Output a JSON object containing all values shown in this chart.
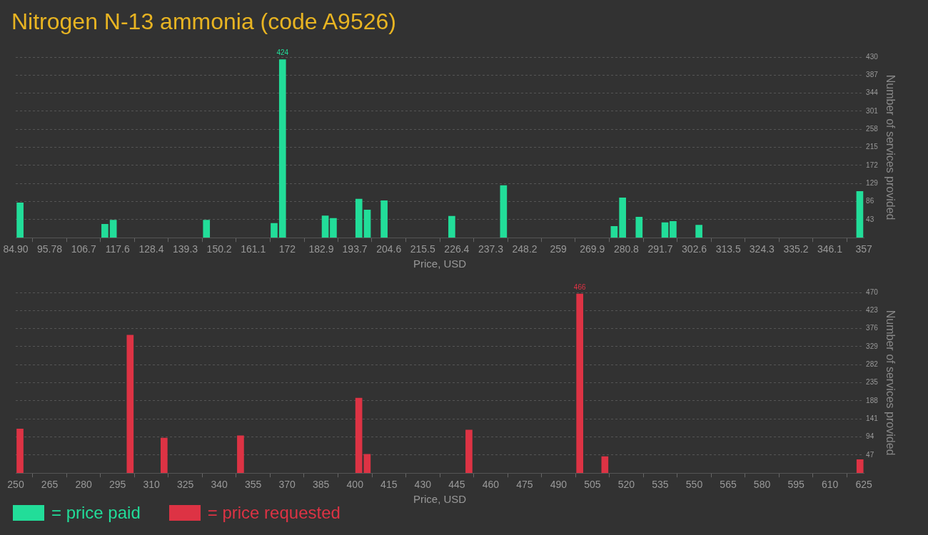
{
  "chart_data": [
    {
      "type": "bar",
      "title": "Nitrogen N-13 ammonia (code A9526)",
      "xlabel": "Price, USD",
      "ylabel": "Number of services provided",
      "x": [
        86.3,
        113.5,
        116.2,
        146.1,
        167.8,
        170.5,
        184.2,
        186.8,
        195.0,
        197.7,
        203.1,
        224.8,
        241.4,
        276.9,
        279.6,
        284.9,
        293.2,
        295.8,
        304.1,
        355.7
      ],
      "series": [
        {
          "name": "= price paid",
          "color": "#22dd99",
          "values": [
            83,
            32,
            42,
            42,
            34,
            424,
            52,
            46,
            92,
            66,
            88,
            51,
            124,
            27,
            95,
            49,
            36,
            39,
            30,
            110
          ],
          "value_labels": [
            null,
            null,
            null,
            null,
            null,
            "424",
            null,
            null,
            null,
            null,
            null,
            null,
            null,
            null,
            null,
            null,
            null,
            null,
            null,
            null
          ]
        }
      ],
      "xlim": [
        84.9,
        357
      ],
      "xticks": [
        {
          "value": 84.9,
          "label": "84.90"
        },
        95.78,
        106.7,
        117.6,
        128.4,
        139.3,
        150.2,
        161.1,
        172,
        182.9,
        193.7,
        204.6,
        215.5,
        226.4,
        237.3,
        248.2,
        259,
        269.9,
        280.8,
        291.7,
        302.6,
        313.5,
        324.3,
        335.2,
        346.1,
        357
      ],
      "ylim": [
        0,
        430
      ],
      "yticks": [
        {
          "value": 0,
          "label": null
        },
        43,
        86,
        129,
        172,
        215,
        258,
        301,
        344,
        387,
        430
      ],
      "grid": "y",
      "legend": "bottom left"
    },
    {
      "type": "bar",
      "xlabel": "Price, USD",
      "ylabel": "Number of services provided",
      "x": [
        251.9,
        300.6,
        315.6,
        349.4,
        401.7,
        405.4,
        450.4,
        499.4,
        510.5,
        623.3
      ],
      "series": [
        {
          "name": "= price requested",
          "color": "#dd3344",
          "values": [
            115,
            359,
            91,
            97,
            195,
            49,
            112,
            466,
            43,
            35
          ],
          "value_labels": [
            null,
            null,
            null,
            null,
            null,
            null,
            null,
            "466",
            null,
            null
          ]
        }
      ],
      "xlim": [
        250,
        625
      ],
      "xticks": [
        250,
        265,
        280,
        295,
        310,
        325,
        340,
        355,
        370,
        385,
        400,
        415,
        430,
        445,
        460,
        475,
        490,
        505,
        520,
        535,
        550,
        565,
        580,
        595,
        610,
        625
      ],
      "ylim": [
        0,
        470
      ],
      "yticks": [
        {
          "value": 0,
          "label": null
        },
        47,
        94,
        141,
        188,
        235,
        282,
        329,
        376,
        423,
        470
      ],
      "grid": "y",
      "legend": "bottom left"
    }
  ]
}
